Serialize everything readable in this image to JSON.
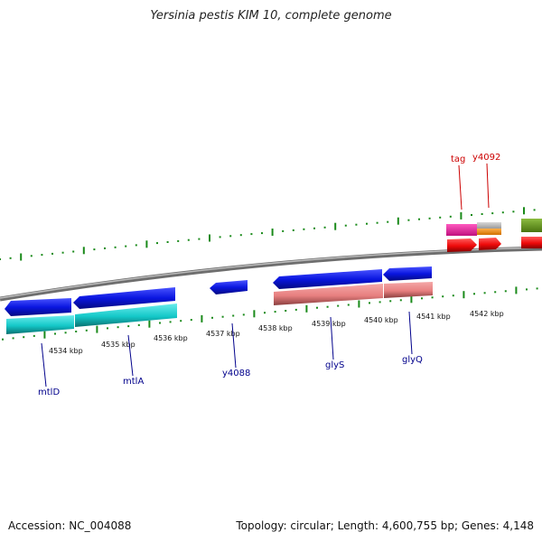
{
  "title": "Yersinia pestis KIM 10, complete genome",
  "footer": {
    "accession": "Accession: NC_004088",
    "summary": "Topology: circular; Length: 4,600,755 bp; Genes: 4,148"
  },
  "colors": {
    "backbone": "#8c8c8c",
    "tick": "#1a8a1a",
    "gene_label_blue": "#00008b",
    "gene_label_red": "#cc0000",
    "blue_gene": "#0a16e0",
    "cyan_gene": "#14c8c8",
    "pink_gene": "#e88080",
    "red_gene": "#ee0a0a",
    "magenta_gene": "#e8189a",
    "grey_gene": "#b4b4b4",
    "orange_gene": "#f08c10",
    "olive_gene": "#6a9a1e"
  },
  "scale": {
    "tick_labels": [
      "4534 kbp",
      "4535 kbp",
      "4536 kbp",
      "4537 kbp",
      "4538 kbp",
      "4539 kbp",
      "4540 kbp",
      "4541 kbp",
      "4542 kbp"
    ]
  },
  "genes": {
    "labels": [
      {
        "name": "mtlD",
        "color": "gene_label_blue"
      },
      {
        "name": "mtlA",
        "color": "gene_label_blue"
      },
      {
        "name": "y4088",
        "color": "gene_label_blue"
      },
      {
        "name": "glyS",
        "color": "gene_label_blue"
      },
      {
        "name": "glyQ",
        "color": "gene_label_blue"
      },
      {
        "name": "tag",
        "color": "gene_label_red"
      },
      {
        "name": "y4092",
        "color": "gene_label_red"
      }
    ]
  }
}
